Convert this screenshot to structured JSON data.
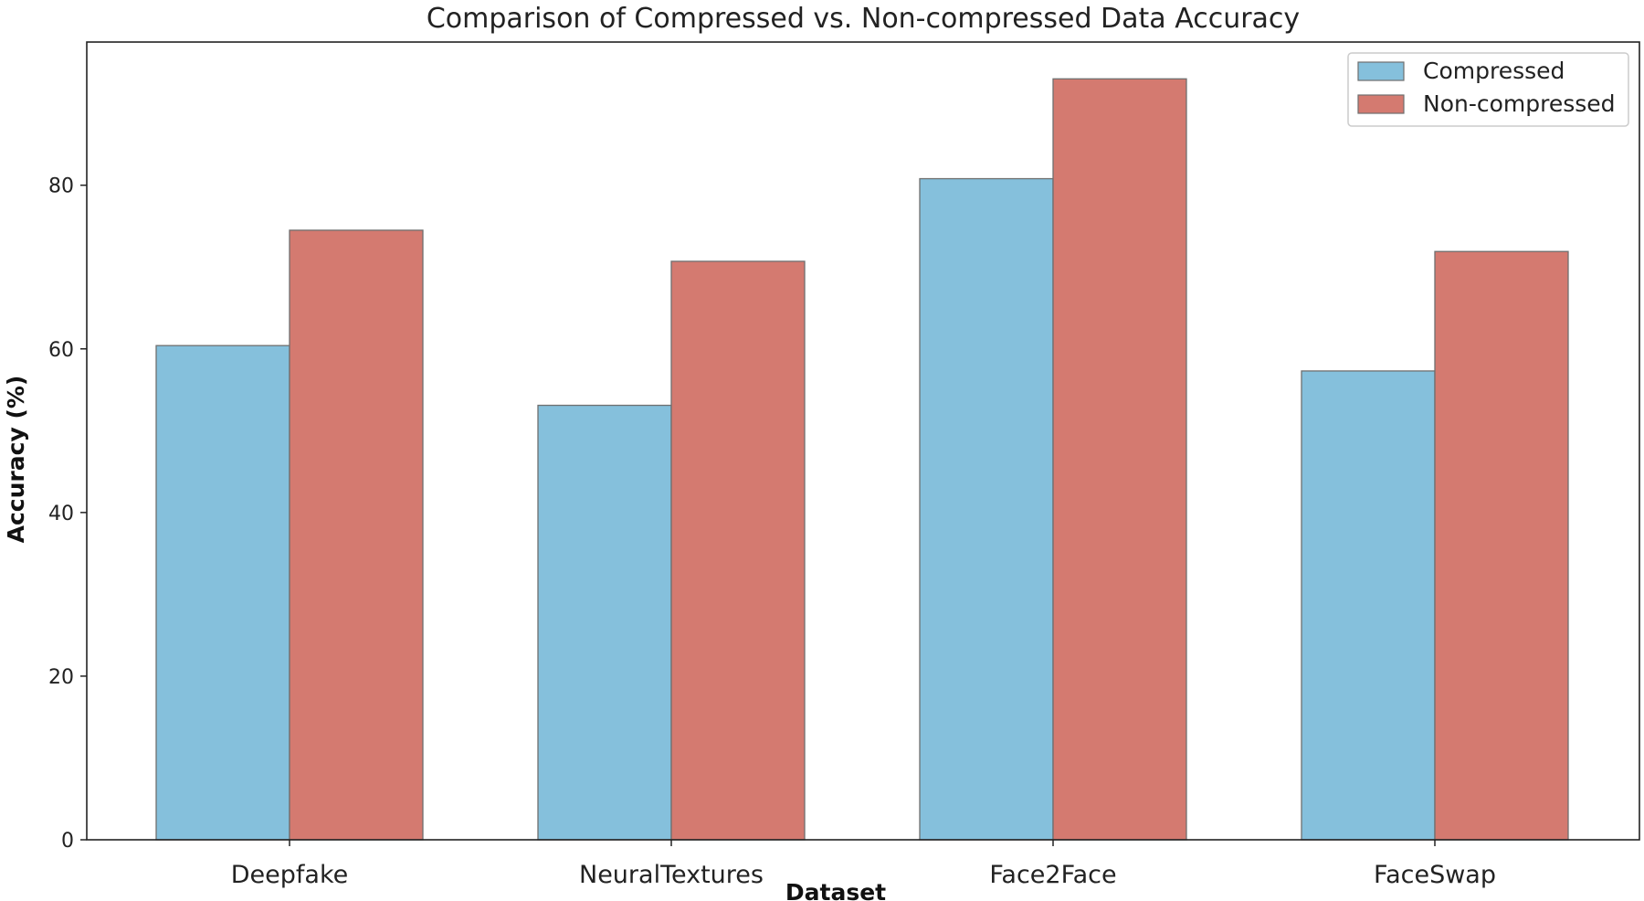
{
  "chart_data": {
    "type": "bar",
    "title": "Comparison of Compressed vs. Non-compressed Data Accuracy",
    "xlabel": "Dataset",
    "ylabel": "Accuracy (%)",
    "categories": [
      "Deepfake",
      "NeuralTextures",
      "Face2Face",
      "FaceSwap"
    ],
    "series": [
      {
        "name": "Compressed",
        "color": "#85c0dc",
        "values": [
          60.4,
          53.1,
          80.8,
          57.3
        ]
      },
      {
        "name": "Non-compressed",
        "color": "#d47a70",
        "values": [
          74.5,
          70.7,
          93.0,
          71.9
        ]
      }
    ],
    "ylim": [
      0,
      97.5
    ],
    "yticks": [
      0,
      20,
      40,
      60,
      80
    ],
    "grid": false,
    "legend": "top-right"
  }
}
